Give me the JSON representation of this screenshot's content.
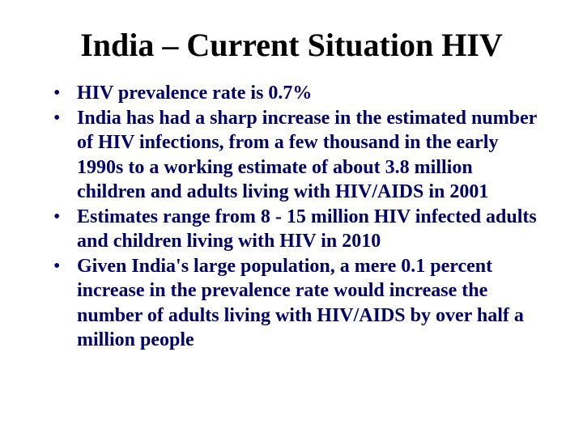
{
  "slide": {
    "title": "India – Current Situation HIV",
    "bullet_marker": "•",
    "bullets": [
      "HIV prevalence rate is 0.7%",
      "India has had a sharp increase in the estimated number of HIV infections, from a few thousand in the early 1990s to a working estimate of about 3.8 million children and adults living with HIV/AIDS in 2001",
      "Estimates range from 8 - 15 million HIV infected adults and children living with HIV in 2010",
      "Given India's large population, a mere 0.1 percent increase in the prevalence rate would increase the number of adults living with HIV/AIDS by over half a million people"
    ]
  },
  "colors": {
    "title": "#000000",
    "body_text": "#000066",
    "background": "#ffffff"
  }
}
